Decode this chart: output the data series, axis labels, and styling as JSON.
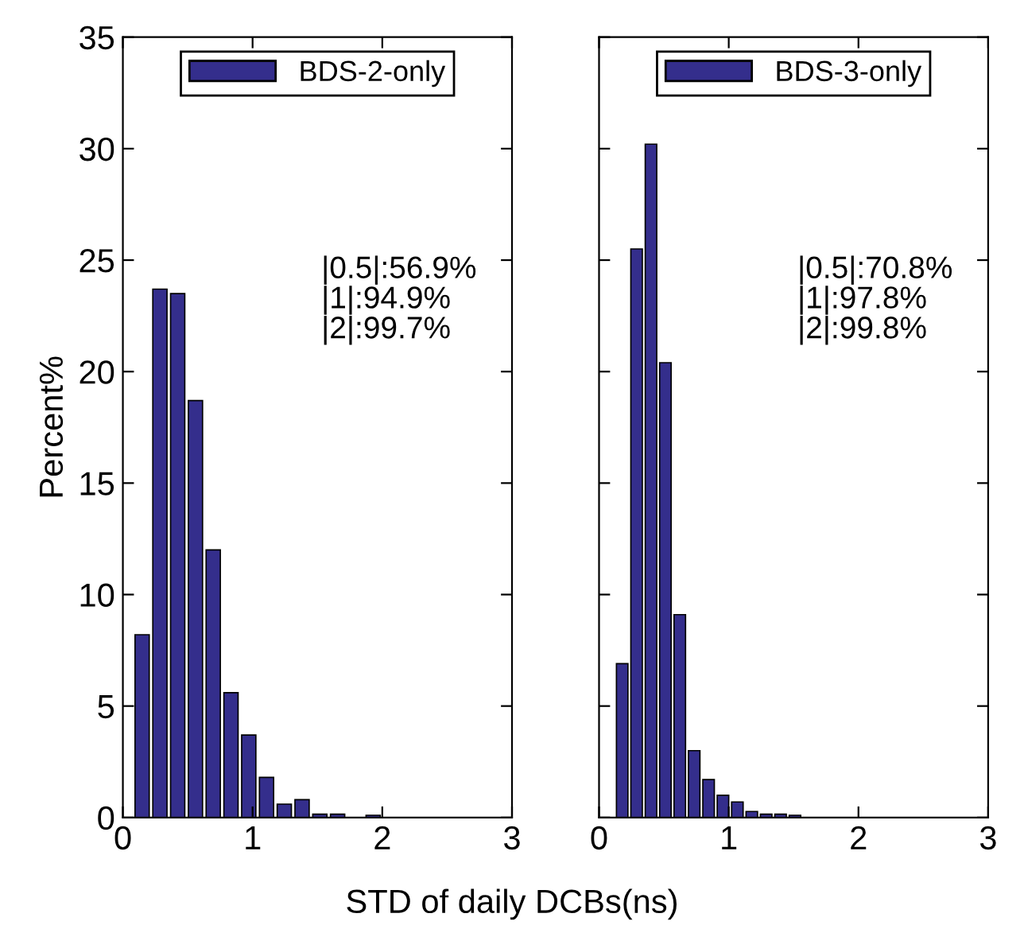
{
  "chart_data": [
    {
      "type": "histogram",
      "ylabel": "Percent%",
      "xlabel": "STD of daily DCBs(ns)",
      "bins": [
        0.08,
        0.217,
        0.354,
        0.491,
        0.628,
        0.765,
        0.902,
        1.039,
        1.176,
        1.313,
        1.45,
        1.587,
        1.724,
        1.861,
        1.998,
        2.135,
        2.272,
        2.409,
        2.546,
        2.683,
        2.82
      ],
      "series": [
        {
          "name": "BDS-2-only",
          "color": "#342e8c",
          "values": [
            8.2,
            23.7,
            23.5,
            18.7,
            12.0,
            5.6,
            3.7,
            1.8,
            0.6,
            0.8,
            0.15,
            0.15,
            0,
            0.1,
            0,
            0,
            0,
            0,
            0,
            0
          ]
        }
      ],
      "xlim": [
        0,
        3
      ],
      "xticks": [
        0,
        1,
        2,
        3
      ],
      "ylim": [
        0,
        35
      ],
      "yticks": [
        0,
        5,
        10,
        15,
        20,
        25,
        30,
        35
      ],
      "annotations": [
        "|0.5|:56.9%\n|1|:94.9%\n|2|:99.7%"
      ],
      "legend": "top",
      "grid": false
    },
    {
      "type": "histogram",
      "bins": [
        0.123,
        0.234,
        0.345,
        0.456,
        0.567,
        0.678,
        0.789,
        0.9,
        1.011,
        1.122,
        1.233,
        1.344,
        1.455,
        1.566,
        1.677,
        1.788,
        1.899,
        2.01,
        2.121,
        2.232,
        2.343
      ],
      "series": [
        {
          "name": "BDS-3-only",
          "color": "#342e8c",
          "values": [
            6.9,
            25.5,
            30.2,
            20.4,
            9.1,
            3.0,
            1.7,
            1.0,
            0.7,
            0.27,
            0.15,
            0.15,
            0.1,
            0,
            0,
            0,
            0,
            0,
            0,
            0
          ]
        }
      ],
      "xlim": [
        0,
        3
      ],
      "xticks": [
        0,
        1,
        2,
        3
      ],
      "ylim": [
        0,
        35
      ],
      "yticks": [
        0,
        5,
        10,
        15,
        20,
        25,
        30,
        35
      ],
      "tick_labels": "x",
      "annotations": [
        "|0.5|:70.8%\n|1|:97.8%\n|2|:99.8%"
      ],
      "legend": "top",
      "grid": false
    }
  ]
}
